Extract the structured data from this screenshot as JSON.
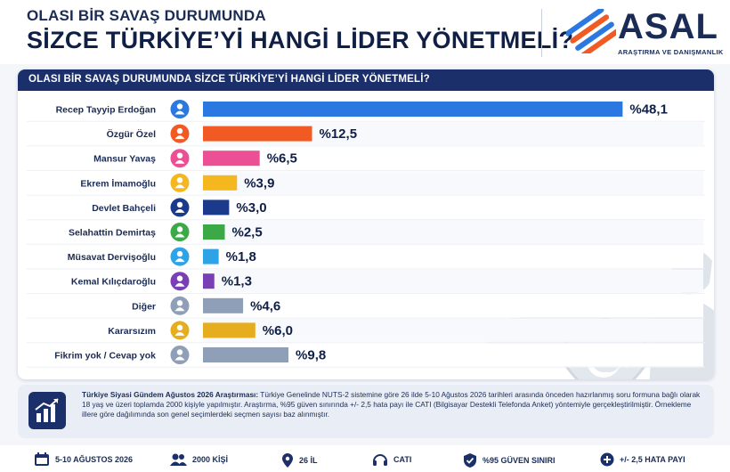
{
  "header": {
    "sup_title": "OLASI BİR SAVAŞ DURUMUNDA",
    "main_title": "SİZCE TÜRKİYE’Yİ HANGİ LİDER YÖNETMELİ?",
    "logo_text": "ASAL",
    "logo_sub": "ARAŞTIRMA VE DANIŞMANLIK"
  },
  "chart_data": {
    "type": "bar",
    "orientation": "horizontal",
    "title": "OLASI BİR SAVAŞ DURUMUNDA SİZCE TÜRKİYE’Yİ HANGİ LİDER YÖNETMELİ?",
    "categories": [
      "Recep Tayyip Erdoğan",
      "Özgür Özel",
      "Mansur Yavaş",
      "Ekrem İmamoğlu",
      "Devlet Bahçeli",
      "Selahattin Demirtaş",
      "Müsavat Dervişoğlu",
      "Kemal Kılıçdaroğlu",
      "Diğer",
      "Kararsızım",
      "Fikrim yok / Cevap yok"
    ],
    "values": [
      48.1,
      12.5,
      6.5,
      3.9,
      3.0,
      2.5,
      1.8,
      1.3,
      4.6,
      6.0,
      9.8
    ],
    "labels": [
      "%48,1",
      "%12,5",
      "%6,5",
      "%3,9",
      "%3,0",
      "%2,5",
      "%1,8",
      "%1,3",
      "%4,6",
      "%6,0",
      "%9,8"
    ],
    "colors": [
      "#2a78e0",
      "#f15a22",
      "#ec4f93",
      "#f4b81e",
      "#1b3a8c",
      "#3aa946",
      "#2ea3e6",
      "#7a3fb5",
      "#8f9fb8",
      "#e6ad1f",
      "#8f9fb8"
    ],
    "xlim": [
      0,
      50
    ],
    "grid": true,
    "legend": "none"
  },
  "info": {
    "heading": "Türkiye Siyasi Gündem Ağustos 2026 Araştırması:",
    "body": " Türkiye Genelinde NUTS-2 sistemine göre 26 ilde 5-10 Ağustos 2026 tarihleri arasında önceden hazırlanmış soru formuna bağlı olarak 18 yaş ve üzeri toplamda 2000 kişiyle yapılmıştır. Araştırma, %95 güven sınırında +/- 2,5 hata payı ile CATI (Bilgisayar Destekli Telefonda Anket) yöntemiyle gerçekleştirilmiştir. Örnekleme illere göre dağılımında son genel seçimlerdeki seçmen sayısı baz alınmıştır."
  },
  "footer": [
    {
      "icon": "calendar-icon",
      "label": "5-10 AĞUSTOS 2026"
    },
    {
      "icon": "people-icon",
      "label": "2000 KİŞİ"
    },
    {
      "icon": "location-pin-icon",
      "label": "26 İL"
    },
    {
      "icon": "headset-icon",
      "label": "CATI"
    },
    {
      "icon": "shield-check-icon",
      "label": "%95 GÜVEN SINIRI"
    },
    {
      "icon": "plus-circle-icon",
      "label": "+/- 2,5 HATA PAYI"
    }
  ]
}
